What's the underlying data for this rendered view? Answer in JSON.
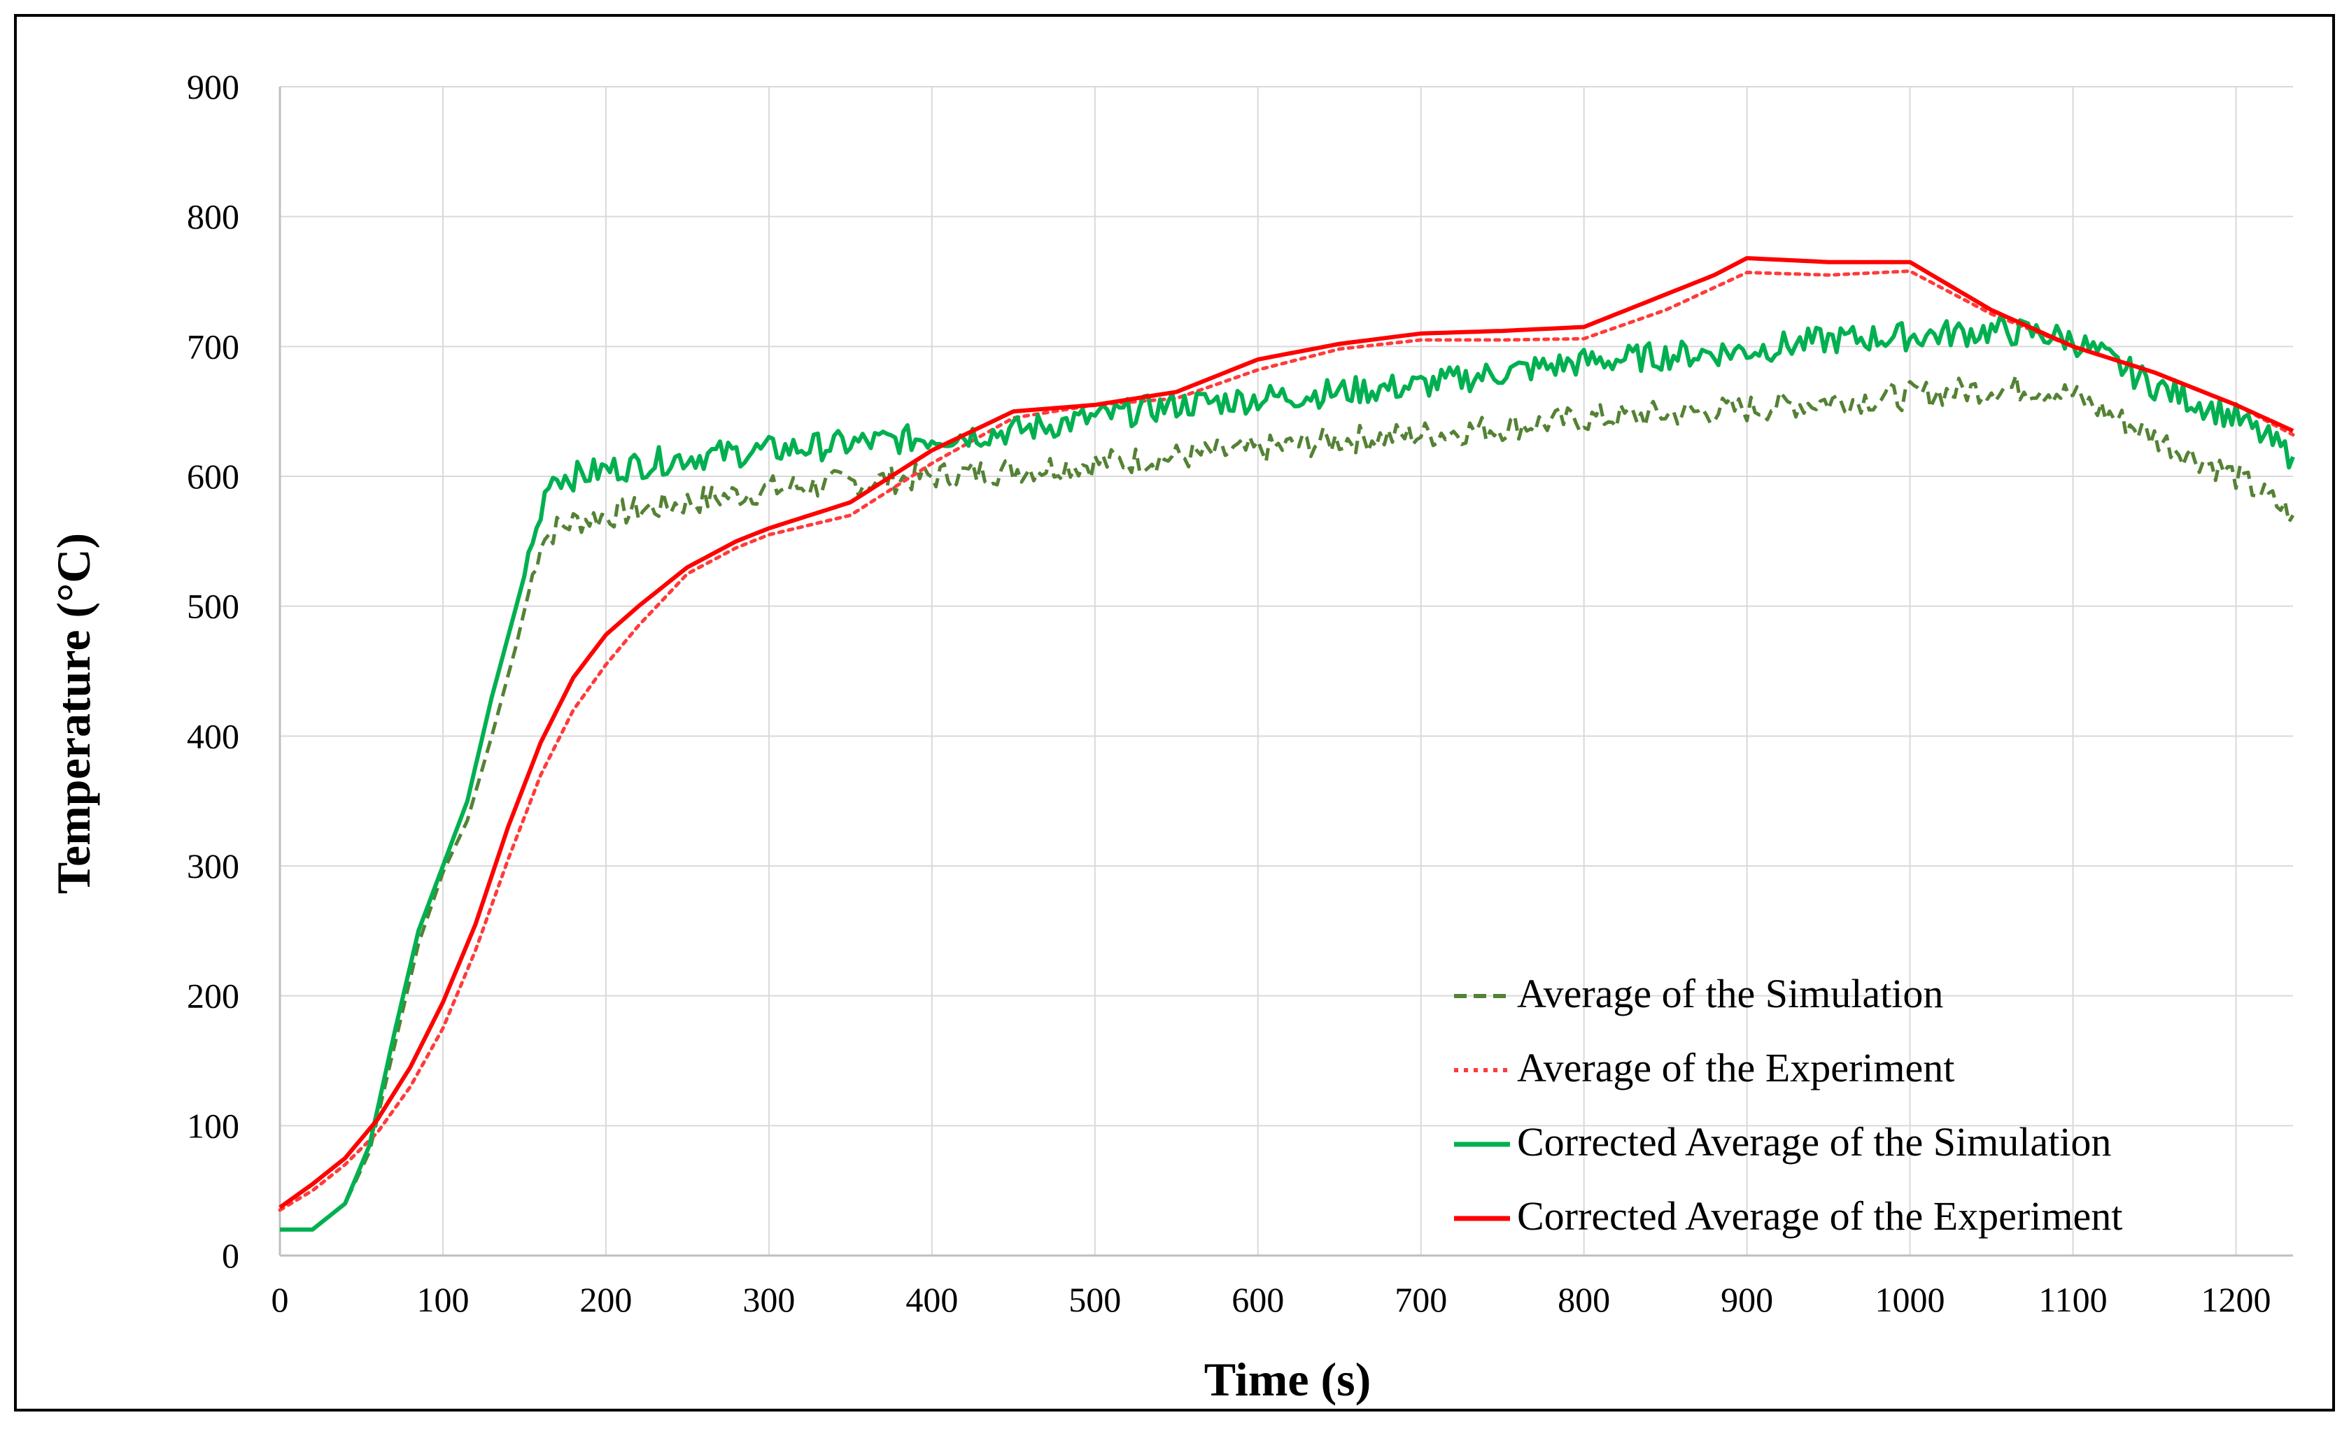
{
  "chart_data": {
    "type": "line",
    "title": "",
    "xlabel": "Time (s)",
    "ylabel": "Temperature (°C)",
    "xlim": [
      0,
      1235
    ],
    "ylim": [
      0,
      900
    ],
    "xticks": [
      0,
      100,
      200,
      300,
      400,
      500,
      600,
      700,
      800,
      900,
      1000,
      1100,
      1200
    ],
    "yticks": [
      0,
      100,
      200,
      300,
      400,
      500,
      600,
      700,
      800,
      900
    ],
    "xtick_labels": [
      "0",
      "100",
      "200",
      "300",
      "400",
      "500",
      "600",
      "700",
      "800",
      "900",
      "1000",
      "1100",
      "1200"
    ],
    "ytick_labels": [
      "0",
      "100",
      "200",
      "300",
      "400",
      "500",
      "600",
      "700",
      "800",
      "900"
    ],
    "grid": true,
    "legend_position": "bottom-right",
    "series": [
      {
        "name": "Average of the Simulation",
        "color": "#548235",
        "style": "dashed",
        "x": [
          0,
          20,
          40,
          55,
          70,
          85,
          100,
          115,
          130,
          145,
          160,
          170,
          180,
          200,
          250,
          300,
          350,
          400,
          450,
          500,
          550,
          600,
          650,
          700,
          750,
          800,
          850,
          900,
          950,
          1000,
          1050,
          1080,
          1100,
          1150,
          1200,
          1235
        ],
        "y": [
          20,
          20,
          40,
          80,
          160,
          240,
          295,
          335,
          400,
          470,
          550,
          560,
          565,
          570,
          580,
          590,
          595,
          600,
          605,
          610,
          615,
          620,
          628,
          632,
          638,
          644,
          648,
          652,
          658,
          662,
          668,
          668,
          662,
          630,
          600,
          570
        ]
      },
      {
        "name": "Average of the Experiment",
        "color": "#ff3b3b",
        "style": "dotted",
        "x": [
          0,
          20,
          40,
          60,
          80,
          100,
          120,
          140,
          160,
          180,
          200,
          220,
          250,
          280,
          300,
          350,
          400,
          450,
          500,
          550,
          600,
          650,
          700,
          750,
          800,
          850,
          900,
          950,
          1000,
          1050,
          1100,
          1150,
          1200,
          1235
        ],
        "y": [
          35,
          50,
          70,
          95,
          130,
          175,
          235,
          305,
          370,
          420,
          455,
          485,
          525,
          545,
          555,
          570,
          610,
          645,
          655,
          660,
          682,
          698,
          705,
          705,
          706,
          728,
          757,
          755,
          758,
          725,
          700,
          680,
          655,
          632
        ]
      },
      {
        "name": "Corrected Average of the Simulation",
        "color": "#00b050",
        "style": "solid",
        "x": [
          0,
          20,
          40,
          55,
          70,
          85,
          100,
          115,
          130,
          145,
          160,
          165,
          180,
          200,
          250,
          300,
          350,
          400,
          450,
          500,
          550,
          600,
          650,
          700,
          750,
          800,
          850,
          900,
          950,
          1000,
          1050,
          1080,
          1100,
          1150,
          1200,
          1235
        ],
        "y": [
          20,
          20,
          40,
          85,
          170,
          250,
          300,
          350,
          430,
          500,
          570,
          600,
          600,
          605,
          615,
          620,
          625,
          630,
          635,
          645,
          655,
          660,
          665,
          670,
          680,
          688,
          693,
          697,
          705,
          708,
          712,
          710,
          705,
          670,
          645,
          615
        ]
      },
      {
        "name": "Corrected Average of the Experiment",
        "color": "#ff0000",
        "style": "solid",
        "x": [
          0,
          20,
          40,
          60,
          80,
          100,
          120,
          140,
          160,
          180,
          200,
          220,
          250,
          280,
          300,
          350,
          400,
          450,
          500,
          550,
          600,
          650,
          700,
          750,
          800,
          850,
          880,
          900,
          950,
          1000,
          1050,
          1100,
          1150,
          1200,
          1235
        ],
        "y": [
          37,
          55,
          75,
          105,
          145,
          195,
          255,
          330,
          395,
          445,
          478,
          500,
          530,
          550,
          560,
          580,
          620,
          650,
          655,
          665,
          690,
          702,
          710,
          712,
          715,
          740,
          755,
          768,
          765,
          765,
          728,
          700,
          680,
          655,
          635
        ]
      }
    ]
  }
}
